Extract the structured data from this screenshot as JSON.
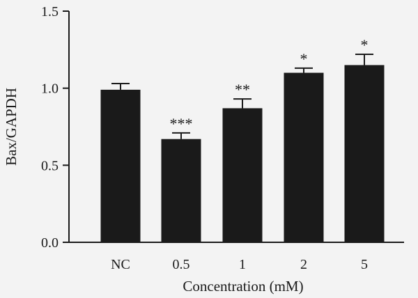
{
  "chart_data": {
    "type": "bar",
    "categories": [
      "NC",
      "0.5",
      "1",
      "2",
      "5"
    ],
    "values": [
      0.99,
      0.67,
      0.87,
      1.1,
      1.15
    ],
    "errors": [
      0.04,
      0.04,
      0.06,
      0.03,
      0.07
    ],
    "annotations": [
      "",
      "***",
      "**",
      "*",
      "*"
    ],
    "xlabel": "Concentration (mM)",
    "ylabel": "Bax/GAPDH",
    "ylim": [
      0,
      1.5
    ],
    "yticks": [
      0.0,
      0.5,
      1.0,
      1.5
    ],
    "ytick_labels": [
      "0.0",
      "0.5",
      "1.0",
      "1.5"
    ],
    "bar_color": "#1a1a1a",
    "grid": false,
    "legend": "none"
  }
}
